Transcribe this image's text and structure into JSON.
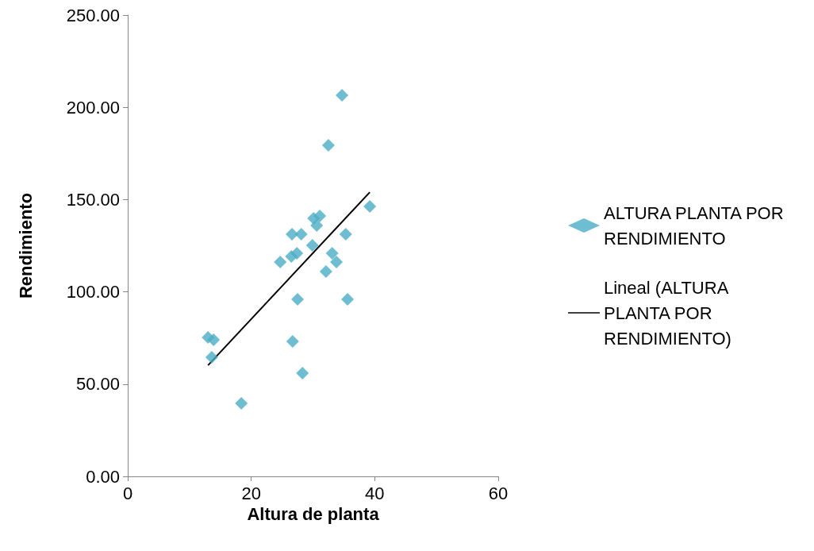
{
  "chart_data": {
    "type": "scatter",
    "xlabel": "Altura de planta",
    "ylabel": "Rendimiento",
    "xlim": [
      0,
      60
    ],
    "xticks": [
      0,
      20,
      40,
      60
    ],
    "ylim": [
      0,
      250
    ],
    "yticks": [
      {
        "value": 0,
        "label": "0.00"
      },
      {
        "value": 50,
        "label": "50.00"
      },
      {
        "value": 100,
        "label": "100.00"
      },
      {
        "value": 150,
        "label": "150.00"
      },
      {
        "value": 200,
        "label": "200.00"
      },
      {
        "value": 250,
        "label": "250.00"
      }
    ],
    "grid": false,
    "legend": "right",
    "marker": "diamond",
    "series": [
      {
        "name": "ALTURA PLANTA POR RENDIMIENTO",
        "color": "#4bacc6",
        "x": [
          34.7,
          32.5,
          39.2,
          30.1,
          31.1,
          30.6,
          26.6,
          28.1,
          35.3,
          29.9,
          33.1,
          27.4,
          26.5,
          24.7,
          33.8,
          32.1,
          27.5,
          35.6,
          13.0,
          13.9,
          26.7,
          13.6,
          28.3,
          18.4
        ],
        "values": [
          206.5,
          179.4,
          146.3,
          139.8,
          141.1,
          136.0,
          131.2,
          131.2,
          131.2,
          125.2,
          120.9,
          120.9,
          119.2,
          116.2,
          116.2,
          111.0,
          96.0,
          96.0,
          75.3,
          74.0,
          73.1,
          64.5,
          55.9,
          39.6
        ]
      },
      {
        "name": "Lineal (ALTURA PLANTA POR RENDIMIENTO)",
        "type": "line",
        "color": "#000000",
        "marker": "none",
        "line_style": "solid",
        "x": [
          13.0,
          39.2
        ],
        "values": [
          60.2,
          154.0
        ]
      }
    ]
  }
}
